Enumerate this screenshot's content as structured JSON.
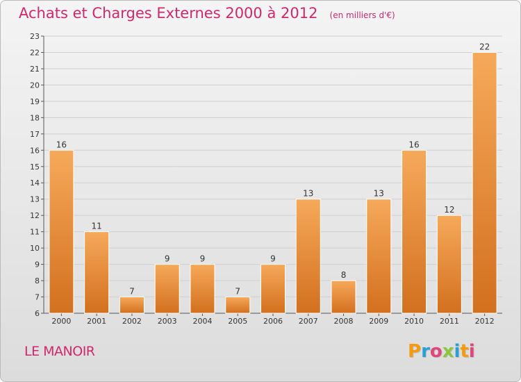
{
  "header": {
    "title": "Achats et Charges Externes 2000 à 2012",
    "unit": "(en milliers d'€)"
  },
  "footer": {
    "commune": "LE MANOIR",
    "brand": "Proxiti",
    "brand_letters": [
      {
        "char": "P",
        "color": "#f39c12"
      },
      {
        "char": "r",
        "color": "#2a9fd6"
      },
      {
        "char": "o",
        "color": "#e0457b"
      },
      {
        "char": "x",
        "color": "#8cc63f"
      },
      {
        "char": "i",
        "color": "#2a9fd6"
      },
      {
        "char": "t",
        "color": "#f39c12"
      },
      {
        "char": "i",
        "color": "#e0457b"
      }
    ]
  },
  "colors": {
    "accent": "#d1286c",
    "bar_top": "#f6a95a",
    "bar_bottom": "#d2701e",
    "grid": "#cfcfcf"
  },
  "chart_data": {
    "type": "bar",
    "title": "Achats et Charges Externes 2000 à 2012",
    "subtitle": "(en milliers d'€)",
    "xlabel": "",
    "ylabel": "",
    "categories": [
      "2000",
      "2001",
      "2002",
      "2003",
      "2004",
      "2005",
      "2006",
      "2007",
      "2008",
      "2009",
      "2010",
      "2011",
      "2012"
    ],
    "values": [
      16,
      11,
      7,
      9,
      9,
      7,
      9,
      13,
      8,
      13,
      16,
      12,
      22
    ],
    "data_labels": [
      "16",
      "11",
      "7",
      "9",
      "9",
      "7",
      "9",
      "13",
      "8",
      "13",
      "16",
      "12",
      "22"
    ],
    "ylim": [
      6,
      23
    ],
    "yticks": [
      6,
      7,
      8,
      9,
      10,
      11,
      12,
      13,
      14,
      15,
      16,
      17,
      18,
      19,
      20,
      21,
      22,
      23
    ],
    "grid": true,
    "legend": "none"
  }
}
